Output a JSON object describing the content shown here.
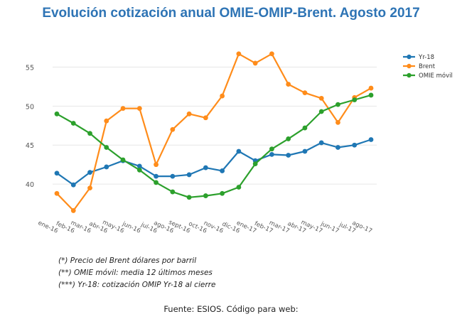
{
  "title": "Evolución cotización anual OMIE-OMIP-Brent. Agosto 2017",
  "notes": [
    "(*) Precio del Brent dólares por barril",
    "(**) OMIE móvil: media 12 últimos meses",
    "(***) Yr-18: cotización OMIP Yr-18 al cierre"
  ],
  "source": "Fuente: ESIOS. Código para web:",
  "chart_data": {
    "type": "line",
    "title": "Evolución cotización anual OMIE-OMIP-Brent. Agosto 2017",
    "xlabel": "",
    "ylabel": "",
    "categories": [
      "ene-16",
      "feb-16",
      "mar-16",
      "abr-16",
      "may-16",
      "jun-16",
      "jul-16",
      "ago-16",
      "sept-16",
      "oct-16",
      "nov-16",
      "dic-16",
      "ene-17",
      "feb-17",
      "mar-17",
      "abr-17",
      "may-17",
      "jun-17",
      "jul-17",
      "ago-17"
    ],
    "yticks": [
      40,
      45,
      50,
      55
    ],
    "ylim": [
      35,
      58.5
    ],
    "grid": true,
    "legend": "top-right",
    "series": [
      {
        "name": "Yr-18",
        "color": "#1f77b4",
        "values": [
          41.4,
          39.9,
          41.5,
          42.2,
          43.0,
          42.3,
          41.0,
          41.0,
          41.2,
          42.1,
          41.7,
          44.2,
          43.0,
          43.8,
          43.7,
          44.2,
          45.3,
          44.7,
          45.0,
          45.7
        ]
      },
      {
        "name": "Brent",
        "color": "#ff8c1a",
        "values": [
          38.8,
          36.6,
          39.5,
          48.1,
          49.7,
          49.7,
          42.5,
          47.0,
          49.0,
          48.5,
          51.3,
          56.7,
          55.5,
          56.7,
          52.8,
          51.7,
          51.0,
          47.9,
          51.1,
          52.3
        ]
      },
      {
        "name": "OMIE móvil",
        "color": "#2ca02c",
        "values": [
          49.0,
          47.8,
          46.5,
          44.7,
          43.1,
          41.8,
          40.2,
          39.0,
          38.3,
          38.5,
          38.8,
          39.6,
          42.6,
          44.5,
          45.8,
          47.2,
          49.3,
          50.2,
          50.8,
          51.4
        ]
      }
    ]
  }
}
